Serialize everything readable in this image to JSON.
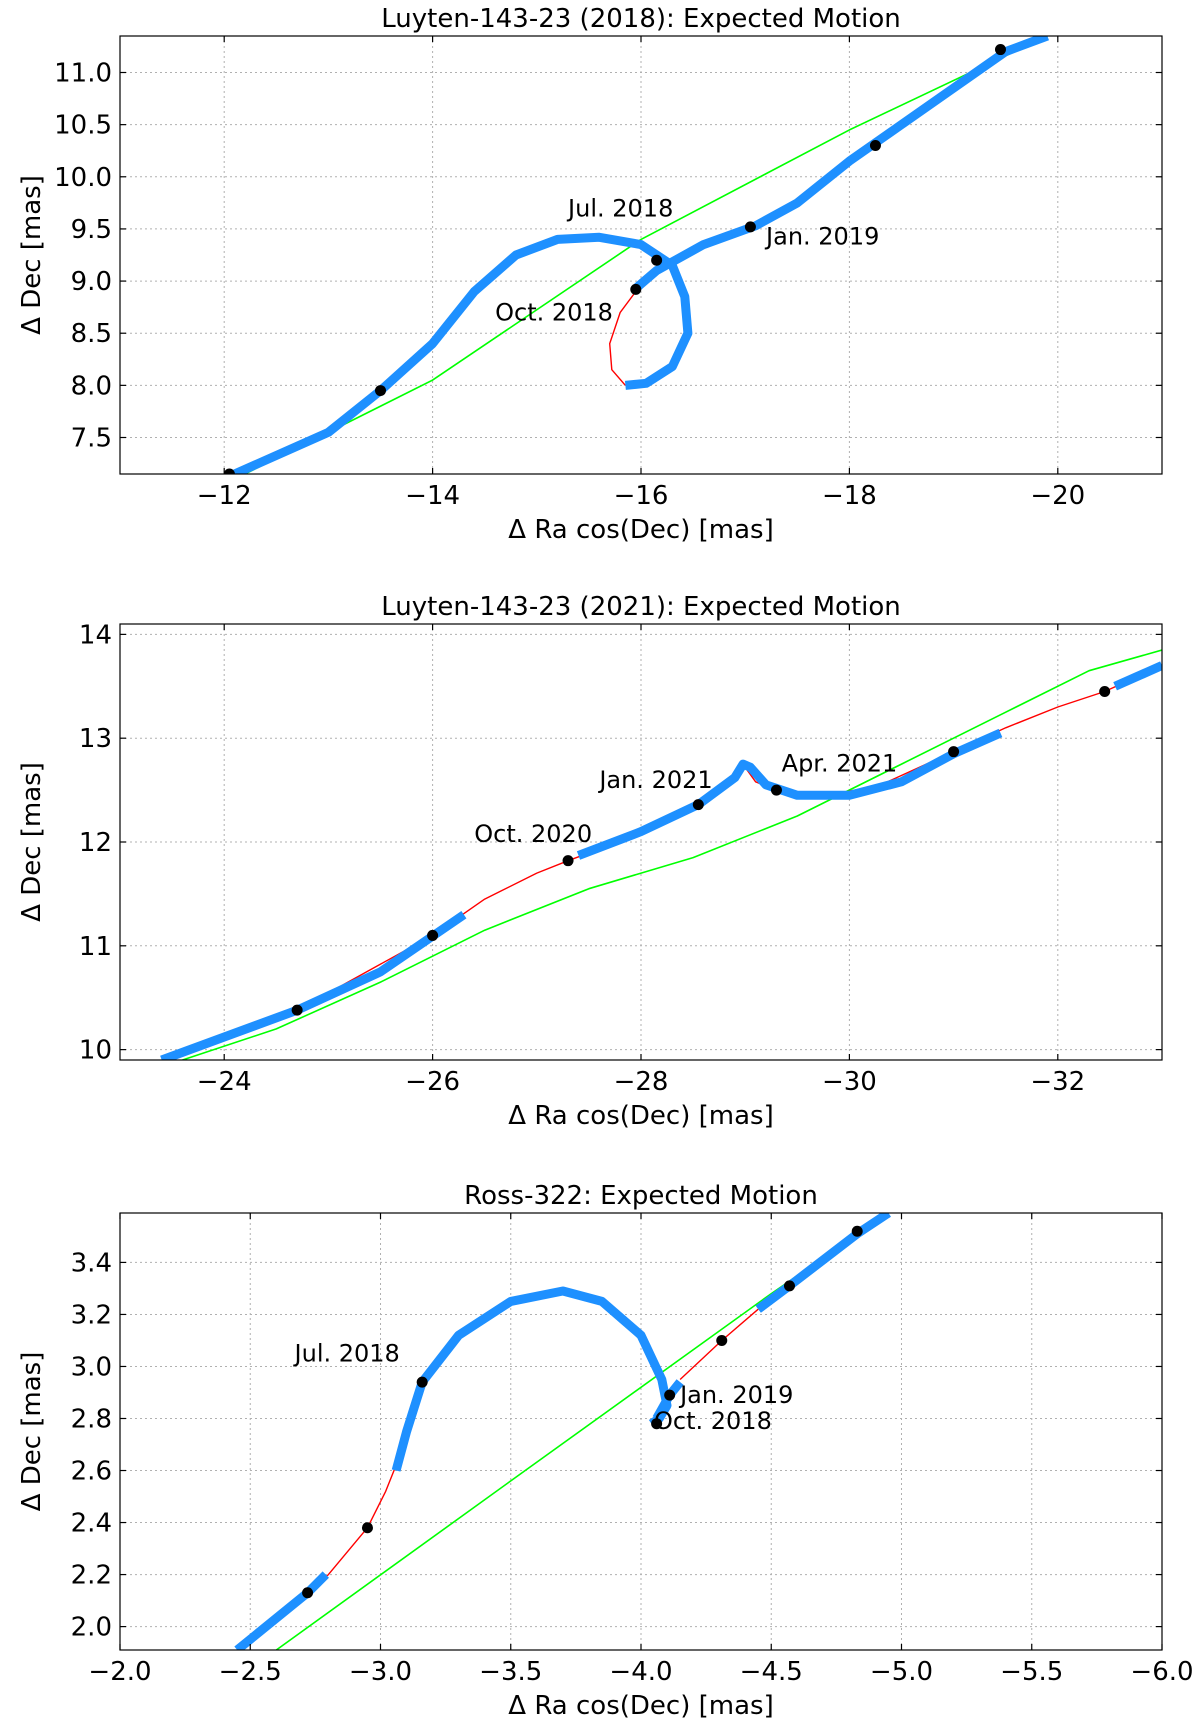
{
  "chart_data": [
    {
      "type": "line",
      "title": "Luyten-143-23 (2018): Expected Motion",
      "xlabel": "Δ Ra cos(Dec) [mas]",
      "ylabel": "Δ Dec [mas]",
      "xlim": [
        -11,
        -21
      ],
      "ylim": [
        7.15,
        11.35
      ],
      "xticks": [
        -12,
        -14,
        -16,
        -18,
        -20
      ],
      "xtick_labels": [
        "−12",
        "−14",
        "−16",
        "−18",
        "−20"
      ],
      "yticks": [
        7.5,
        8.0,
        8.5,
        9.0,
        9.5,
        10.0,
        10.5,
        11.0
      ],
      "ytick_labels": [
        "7.5",
        "8.0",
        "8.5",
        "9.0",
        "9.5",
        "10.0",
        "10.5",
        "11.0"
      ],
      "grid": true,
      "colors": {
        "observed": "#1e90ff",
        "expected": "#ff0000",
        "straight": "#00ff00",
        "epoch": "#000000"
      },
      "series": [
        {
          "name": "straight-line motion",
          "style": "green-thin",
          "points": [
            [
              -12.2,
              7.15
            ],
            [
              -14.0,
              8.05
            ],
            [
              -16.0,
              9.4
            ],
            [
              -18.0,
              10.45
            ],
            [
              -19.9,
              11.35
            ]
          ]
        },
        {
          "name": "expected motion",
          "style": "red-thin",
          "points": [
            [
              -15.85,
              8.0
            ],
            [
              -15.72,
              8.15
            ],
            [
              -15.7,
              8.4
            ],
            [
              -15.8,
              8.7
            ],
            [
              -15.95,
              8.9
            ]
          ]
        },
        {
          "name": "observed motion",
          "style": "blue-thick",
          "points": [
            [
              -12.1,
              7.15
            ],
            [
              -13.0,
              7.55
            ],
            [
              -13.5,
              7.95
            ],
            [
              -14.0,
              8.4
            ],
            [
              -14.4,
              8.9
            ],
            [
              -14.8,
              9.25
            ],
            [
              -15.2,
              9.4
            ],
            [
              -15.6,
              9.42
            ],
            [
              -16.0,
              9.35
            ],
            [
              -16.3,
              9.15
            ],
            [
              -16.42,
              8.85
            ],
            [
              -16.45,
              8.5
            ],
            [
              -16.3,
              8.18
            ],
            [
              -16.05,
              8.02
            ],
            [
              -15.85,
              8.0
            ]
          ]
        },
        {
          "name": "observed motion",
          "style": "blue-thick",
          "points": [
            [
              -15.95,
              8.93
            ],
            [
              -16.15,
              9.1
            ],
            [
              -16.6,
              9.35
            ],
            [
              -17.1,
              9.53
            ],
            [
              -17.5,
              9.75
            ],
            [
              -18.0,
              10.15
            ],
            [
              -18.5,
              10.5
            ],
            [
              -19.0,
              10.85
            ],
            [
              -19.5,
              11.2
            ],
            [
              -19.9,
              11.35
            ]
          ]
        }
      ],
      "epochs": [
        [
          -12.05,
          7.15
        ],
        [
          -13.5,
          7.95
        ],
        [
          -15.95,
          8.92
        ],
        [
          -16.15,
          9.2
        ],
        [
          -17.05,
          9.52
        ],
        [
          -18.25,
          10.3
        ],
        [
          -19.45,
          11.22
        ]
      ],
      "annotations": [
        {
          "text": "Jul. 2018",
          "x": -15.3,
          "y": 9.62
        },
        {
          "text": "Oct. 2018",
          "x": -14.6,
          "y": 8.62
        },
        {
          "text": "Jan. 2019",
          "x": -17.2,
          "y": 9.35
        }
      ]
    },
    {
      "type": "line",
      "title": "Luyten-143-23 (2021): Expected Motion",
      "xlabel": "Δ Ra cos(Dec) [mas]",
      "ylabel": "Δ Dec [mas]",
      "xlim": [
        -23,
        -33
      ],
      "ylim": [
        9.9,
        14.1
      ],
      "xticks": [
        -24,
        -26,
        -28,
        -30,
        -32
      ],
      "xtick_labels": [
        "−24",
        "−26",
        "−28",
        "−30",
        "−32"
      ],
      "yticks": [
        10,
        11,
        12,
        13,
        14
      ],
      "ytick_labels": [
        "10",
        "11",
        "12",
        "13",
        "14"
      ],
      "grid": true,
      "colors": {
        "observed": "#1e90ff",
        "expected": "#ff0000",
        "straight": "#00ff00",
        "epoch": "#000000"
      },
      "series": [
        {
          "name": "straight-line motion",
          "style": "green-thin",
          "points": [
            [
              -23.6,
              9.9
            ],
            [
              -24.5,
              10.2
            ],
            [
              -25.5,
              10.65
            ],
            [
              -26.5,
              11.15
            ],
            [
              -27.5,
              11.55
            ],
            [
              -28.5,
              11.85
            ],
            [
              -29.5,
              12.25
            ],
            [
              -30.5,
              12.75
            ],
            [
              -31.5,
              13.25
            ],
            [
              -32.3,
              13.65
            ],
            [
              -33.0,
              13.85
            ]
          ]
        },
        {
          "name": "expected motion",
          "style": "red-thin",
          "points": [
            [
              -23.4,
              9.9
            ],
            [
              -24.7,
              10.38
            ],
            [
              -26.0,
              11.1
            ],
            [
              -26.5,
              11.45
            ],
            [
              -27.0,
              11.7
            ],
            [
              -27.3,
              11.82
            ],
            [
              -28.0,
              12.08
            ],
            [
              -28.55,
              12.36
            ],
            [
              -28.9,
              12.62
            ],
            [
              -29.0,
              12.72
            ],
            [
              -29.1,
              12.58
            ],
            [
              -29.3,
              12.5
            ],
            [
              -29.8,
              12.45
            ],
            [
              -30.3,
              12.55
            ],
            [
              -31.0,
              12.87
            ],
            [
              -31.5,
              13.1
            ],
            [
              -32.0,
              13.3
            ],
            [
              -32.45,
              13.45
            ],
            [
              -33.0,
              13.7
            ]
          ]
        },
        {
          "name": "observed motion",
          "style": "blue-thick",
          "points": [
            [
              -23.4,
              9.9
            ],
            [
              -24.7,
              10.38
            ],
            [
              -25.5,
              10.75
            ],
            [
              -26.3,
              11.3
            ]
          ]
        },
        {
          "name": "observed motion",
          "style": "blue-thick",
          "points": [
            [
              -27.4,
              11.87
            ],
            [
              -28.0,
              12.1
            ],
            [
              -28.55,
              12.36
            ],
            [
              -28.9,
              12.62
            ],
            [
              -28.98,
              12.75
            ],
            [
              -29.05,
              12.72
            ],
            [
              -29.2,
              12.55
            ],
            [
              -29.5,
              12.45
            ],
            [
              -30.0,
              12.45
            ],
            [
              -30.5,
              12.58
            ],
            [
              -31.0,
              12.85
            ],
            [
              -31.45,
              13.05
            ]
          ]
        },
        {
          "name": "observed motion",
          "style": "blue-thick",
          "points": [
            [
              -32.55,
              13.5
            ],
            [
              -33.0,
              13.7
            ]
          ]
        }
      ],
      "epochs": [
        [
          -24.7,
          10.38
        ],
        [
          -26.0,
          11.1
        ],
        [
          -27.3,
          11.82
        ],
        [
          -28.55,
          12.36
        ],
        [
          -29.3,
          12.5
        ],
        [
          -31.0,
          12.87
        ],
        [
          -32.45,
          13.45
        ]
      ],
      "annotations": [
        {
          "text": "Oct. 2020",
          "x": -26.4,
          "y": 12.0
        },
        {
          "text": "Jan. 2021",
          "x": -27.6,
          "y": 12.52
        },
        {
          "text": "Apr. 2021",
          "x": -29.35,
          "y": 12.68
        }
      ]
    },
    {
      "type": "line",
      "title": "Ross-322: Expected Motion",
      "xlabel": "Δ Ra cos(Dec) [mas]",
      "ylabel": "Δ Dec [mas]",
      "xlim": [
        -2.0,
        -6.0
      ],
      "ylim": [
        1.91,
        3.59
      ],
      "xticks": [
        -2.0,
        -2.5,
        -3.0,
        -3.5,
        -4.0,
        -4.5,
        -5.0,
        -5.5,
        -6.0
      ],
      "xtick_labels": [
        "−2.0",
        "−2.5",
        "−3.0",
        "−3.5",
        "−4.0",
        "−4.5",
        "−5.0",
        "−5.5",
        "−6.0"
      ],
      "yticks": [
        2.0,
        2.2,
        2.4,
        2.6,
        2.8,
        3.0,
        3.2,
        3.4
      ],
      "ytick_labels": [
        "2.0",
        "2.2",
        "2.4",
        "2.6",
        "2.8",
        "3.0",
        "3.2",
        "3.4"
      ],
      "grid": true,
      "colors": {
        "observed": "#1e90ff",
        "expected": "#ff0000",
        "straight": "#00ff00",
        "epoch": "#000000"
      },
      "series": [
        {
          "name": "straight-line motion",
          "style": "green-thin",
          "points": [
            [
              -2.6,
              1.91
            ],
            [
              -3.5,
              2.56
            ],
            [
              -4.5,
              3.28
            ],
            [
              -4.95,
              3.59
            ]
          ]
        },
        {
          "name": "expected motion",
          "style": "red-thin",
          "points": [
            [
              -2.45,
              1.91
            ],
            [
              -2.72,
              2.13
            ],
            [
              -2.8,
              2.2
            ],
            [
              -2.95,
              2.38
            ],
            [
              -3.02,
              2.52
            ],
            [
              -3.06,
              2.62
            ]
          ]
        },
        {
          "name": "expected motion",
          "style": "red-thin",
          "points": [
            [
              -4.15,
              2.95
            ],
            [
              -4.31,
              3.1
            ],
            [
              -4.45,
              3.22
            ]
          ]
        },
        {
          "name": "observed motion",
          "style": "blue-thick",
          "points": [
            [
              -2.45,
              1.91
            ],
            [
              -2.72,
              2.13
            ],
            [
              -2.79,
              2.2
            ]
          ]
        },
        {
          "name": "observed motion",
          "style": "blue-thick",
          "points": [
            [
              -3.06,
              2.6
            ],
            [
              -3.1,
              2.75
            ],
            [
              -3.16,
              2.94
            ],
            [
              -3.3,
              3.12
            ],
            [
              -3.5,
              3.25
            ],
            [
              -3.7,
              3.29
            ],
            [
              -3.85,
              3.25
            ],
            [
              -4.0,
              3.12
            ],
            [
              -4.08,
              2.95
            ],
            [
              -4.1,
              2.85
            ],
            [
              -4.07,
              2.8
            ],
            [
              -4.04,
              2.78
            ]
          ]
        },
        {
          "name": "observed motion",
          "style": "blue-thick",
          "points": [
            [
              -4.06,
              2.8
            ],
            [
              -4.11,
              2.89
            ],
            [
              -4.15,
              2.94
            ]
          ]
        },
        {
          "name": "observed motion",
          "style": "blue-thick",
          "points": [
            [
              -4.45,
              3.22
            ],
            [
              -4.57,
              3.31
            ],
            [
              -4.83,
              3.51
            ],
            [
              -4.95,
              3.59
            ]
          ]
        }
      ],
      "epochs": [
        [
          -2.72,
          2.13
        ],
        [
          -2.95,
          2.38
        ],
        [
          -3.16,
          2.94
        ],
        [
          -4.06,
          2.78
        ],
        [
          -4.11,
          2.89
        ],
        [
          -4.31,
          3.1
        ],
        [
          -4.57,
          3.31
        ],
        [
          -4.83,
          3.52
        ]
      ],
      "annotations": [
        {
          "text": "Jul. 2018",
          "x": -2.67,
          "y": 3.02
        },
        {
          "text": "Jan. 2019",
          "x": -4.15,
          "y": 2.86
        },
        {
          "text": "Oct. 2018",
          "x": -4.05,
          "y": 2.76
        }
      ]
    }
  ]
}
